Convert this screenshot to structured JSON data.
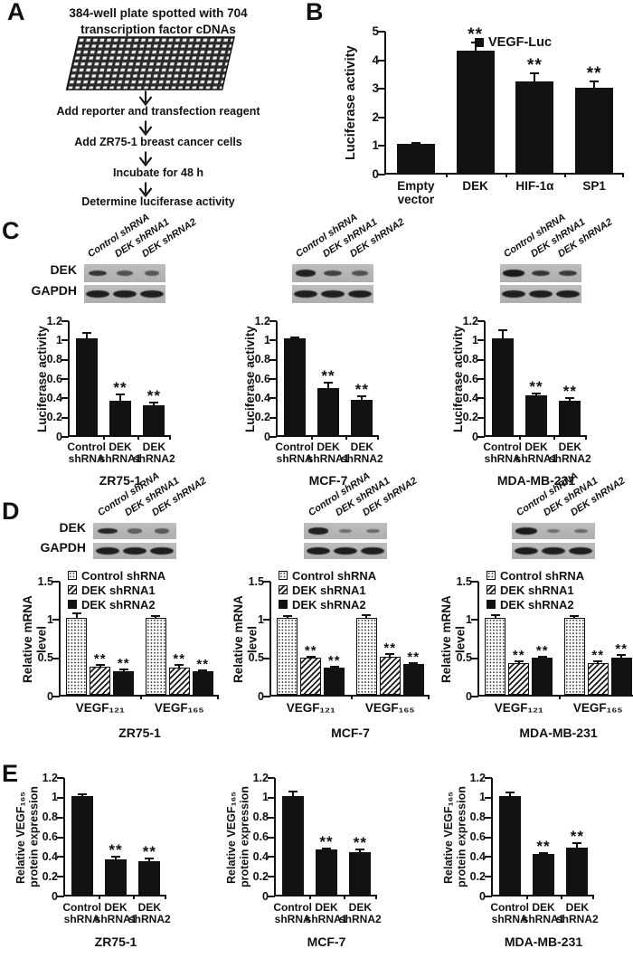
{
  "panel_labels": {
    "a": "A",
    "b": "B",
    "c": "C",
    "d": "D",
    "e": "E"
  },
  "panelA": {
    "title": "384-well plate spotted with 704\ntranscription factor cDNAs",
    "plate_graphic": "384-well plate",
    "steps": [
      "Add reporter and transfection reagent",
      "Add ZR75-1 breast cancer cells",
      "Incubate for 48 h",
      "Determine luciferase activity"
    ]
  },
  "westernBlots": {
    "lane_labels": [
      "Control shRNA",
      "DEK shRNA1",
      "DEK shRNA2"
    ],
    "row_labels": [
      "DEK",
      "GAPDH"
    ],
    "panelC": [
      {
        "cell_line": "ZR75-1",
        "DEK_bands": [
          0.7,
          0.45,
          0.4
        ],
        "GAPDH_bands": [
          0.95,
          0.95,
          0.95
        ]
      },
      {
        "cell_line": "MCF-7",
        "DEK_bands": [
          0.9,
          0.6,
          0.45
        ],
        "GAPDH_bands": [
          0.95,
          0.95,
          0.95
        ]
      },
      {
        "cell_line": "MDA-MB-231",
        "DEK_bands": [
          0.95,
          0.7,
          0.65
        ],
        "GAPDH_bands": [
          0.95,
          0.95,
          0.95
        ]
      }
    ],
    "panelD": [
      {
        "cell_line": "ZR75-1",
        "DEK_bands": [
          0.85,
          0.35,
          0.4
        ],
        "GAPDH_bands": [
          0.95,
          0.95,
          0.95
        ]
      },
      {
        "cell_line": "MCF-7",
        "DEK_bands": [
          0.9,
          0.2,
          0.25
        ],
        "GAPDH_bands": [
          0.95,
          0.95,
          0.95
        ]
      },
      {
        "cell_line": "MDA-MB-231",
        "DEK_bands": [
          0.95,
          0.2,
          0.25
        ],
        "GAPDH_bands": [
          0.95,
          0.95,
          0.95
        ]
      }
    ]
  },
  "chart_data": [
    {
      "id": "b-vegf-luc",
      "panel": "B",
      "type": "bar",
      "title": "",
      "ylabel": "Luciferase activity",
      "ylim": [
        0,
        5
      ],
      "yticks": [
        0,
        1,
        2,
        3,
        4,
        5
      ],
      "grid": false,
      "categories": [
        "Empty\nvector",
        "DEK",
        "HIF-1α",
        "SP1"
      ],
      "values": [
        1.0,
        4.27,
        3.2,
        2.97
      ],
      "errors": [
        0.05,
        0.33,
        0.3,
        0.27
      ],
      "significance": [
        "",
        "**",
        "**",
        "**"
      ],
      "bar_fill": "solid",
      "legend": [
        {
          "label": "VEGF-Luc",
          "fill": "solid"
        }
      ],
      "legend_position": "top-inside"
    },
    {
      "id": "c-zr75-1",
      "panel": "C",
      "type": "bar",
      "title": "ZR75-1",
      "ylabel": "Luciferase activity",
      "ylim": [
        0,
        1.2
      ],
      "yticks": [
        0,
        0.2,
        0.4,
        0.6,
        0.8,
        1,
        1.2
      ],
      "grid": false,
      "categories": [
        "Control\nshRNA",
        "DEK\nshRNA1",
        "DEK\nshRNA2"
      ],
      "values": [
        1.0,
        0.36,
        0.31
      ],
      "errors": [
        0.07,
        0.07,
        0.04
      ],
      "significance": [
        "",
        "**",
        "**"
      ],
      "bar_fill": "solid"
    },
    {
      "id": "c-mcf-7",
      "panel": "C",
      "type": "bar",
      "title": "MCF-7",
      "ylabel": "Luciferase activity",
      "ylim": [
        0,
        1.2
      ],
      "yticks": [
        0,
        0.2,
        0.4,
        0.6,
        0.8,
        1,
        1.2
      ],
      "grid": false,
      "categories": [
        "Control\nshRNA",
        "DEK\nshRNA1",
        "DEK\nshRNA2"
      ],
      "values": [
        1.0,
        0.49,
        0.37
      ],
      "errors": [
        0.02,
        0.06,
        0.04
      ],
      "significance": [
        "",
        "**",
        "**"
      ],
      "bar_fill": "solid"
    },
    {
      "id": "c-mda-mb-231",
      "panel": "C",
      "type": "bar",
      "title": "MDA-MB-231",
      "ylabel": "Luciferase activity",
      "ylim": [
        0,
        1.2
      ],
      "yticks": [
        0,
        0.2,
        0.4,
        0.6,
        0.8,
        1,
        1.2
      ],
      "grid": false,
      "categories": [
        "Control\nshRNA",
        "DEK\nshRNA1",
        "DEK\nshRNA2"
      ],
      "values": [
        1.0,
        0.41,
        0.36
      ],
      "errors": [
        0.1,
        0.03,
        0.03
      ],
      "significance": [
        "",
        "**",
        "**"
      ],
      "bar_fill": "solid"
    },
    {
      "id": "d-zr75-1",
      "panel": "D",
      "type": "grouped-bar",
      "title": "ZR75-1",
      "ylabel": "Relative mRNA level",
      "ylim": [
        0,
        1.5
      ],
      "yticks": [
        0,
        0.5,
        1,
        1.5
      ],
      "grid": false,
      "categories": [
        "VEGF₁₂₁",
        "VEGF₁₆₅"
      ],
      "legend_position": "top-left",
      "series": [
        {
          "name": "Control shRNA",
          "fill": "dots",
          "values": [
            1.0,
            1.0
          ],
          "errors": [
            0.07,
            0.04
          ],
          "significance": [
            "",
            ""
          ]
        },
        {
          "name": "DEK shRNA1",
          "fill": "hatch",
          "values": [
            0.37,
            0.35
          ],
          "errors": [
            0.03,
            0.05
          ],
          "significance": [
            "**",
            "**"
          ]
        },
        {
          "name": "DEK shRNA2",
          "fill": "solid",
          "values": [
            0.31,
            0.31
          ],
          "errors": [
            0.03,
            0.02
          ],
          "significance": [
            "**",
            "**"
          ]
        }
      ]
    },
    {
      "id": "d-mcf-7",
      "panel": "D",
      "type": "grouped-bar",
      "title": "MCF-7",
      "ylabel": "Relative mRNA level",
      "ylim": [
        0,
        1.5
      ],
      "yticks": [
        0,
        0.5,
        1,
        1.5
      ],
      "grid": false,
      "categories": [
        "VEGF₁₂₁",
        "VEGF₁₆₅"
      ],
      "legend_position": "top-left",
      "series": [
        {
          "name": "Control shRNA",
          "fill": "dots",
          "values": [
            1.0,
            1.0
          ],
          "errors": [
            0.04,
            0.05
          ],
          "significance": [
            "",
            ""
          ]
        },
        {
          "name": "DEK shRNA1",
          "fill": "hatch",
          "values": [
            0.49,
            0.5
          ],
          "errors": [
            0.02,
            0.04
          ],
          "significance": [
            "**",
            "**"
          ]
        },
        {
          "name": "DEK shRNA2",
          "fill": "solid",
          "values": [
            0.35,
            0.4
          ],
          "errors": [
            0.03,
            0.03
          ],
          "significance": [
            "**",
            "**"
          ]
        }
      ]
    },
    {
      "id": "d-mda-mb-231",
      "panel": "D",
      "type": "grouped-bar",
      "title": "MDA-MB-231",
      "ylabel": "Relative mRNA level",
      "ylim": [
        0,
        1.5
      ],
      "yticks": [
        0,
        0.5,
        1,
        1.5
      ],
      "grid": false,
      "categories": [
        "VEGF₁₂₁",
        "VEGF₁₆₅"
      ],
      "legend_position": "top-left",
      "series": [
        {
          "name": "Control shRNA",
          "fill": "dots",
          "values": [
            1.0,
            1.0
          ],
          "errors": [
            0.05,
            0.04
          ],
          "significance": [
            "",
            ""
          ]
        },
        {
          "name": "DEK shRNA1",
          "fill": "hatch",
          "values": [
            0.41,
            0.41
          ],
          "errors": [
            0.04,
            0.04
          ],
          "significance": [
            "**",
            "**"
          ]
        },
        {
          "name": "DEK shRNA2",
          "fill": "solid",
          "values": [
            0.49,
            0.49
          ],
          "errors": [
            0.02,
            0.04
          ],
          "significance": [
            "**",
            "**"
          ]
        }
      ]
    },
    {
      "id": "e-zr75-1",
      "panel": "E",
      "type": "bar",
      "title": "ZR75-1",
      "ylabel": "Relative VEGF₁₆₅\nprotein expression",
      "ylim": [
        0,
        1.2
      ],
      "yticks": [
        0,
        0.2,
        0.4,
        0.6,
        0.8,
        1,
        1.2
      ],
      "grid": false,
      "categories": [
        "Control\nshRNA",
        "DEK\nshRNA1",
        "DEK\nshRNA2"
      ],
      "values": [
        1.0,
        0.36,
        0.34
      ],
      "errors": [
        0.03,
        0.03,
        0.04
      ],
      "significance": [
        "",
        "**",
        "**"
      ],
      "bar_fill": "solid"
    },
    {
      "id": "e-mcf-7",
      "panel": "E",
      "type": "bar",
      "title": "MCF-7",
      "ylabel": "Relative VEGF₁₆₅\nprotein expression",
      "ylim": [
        0,
        1.2
      ],
      "yticks": [
        0,
        0.2,
        0.4,
        0.6,
        0.8,
        1,
        1.2
      ],
      "grid": false,
      "categories": [
        "Control\nshRNA",
        "DEK\nshRNA1",
        "DEK\nshRNA2"
      ],
      "values": [
        1.0,
        0.46,
        0.43
      ],
      "errors": [
        0.05,
        0.02,
        0.04
      ],
      "significance": [
        "",
        "**",
        "**"
      ],
      "bar_fill": "solid"
    },
    {
      "id": "e-mda-mb-231",
      "panel": "E",
      "type": "bar",
      "title": "MDA-MB-231",
      "ylabel": "Relative VEGF₁₆₅\nprotein expression",
      "ylim": [
        0,
        1.2
      ],
      "yticks": [
        0,
        0.2,
        0.4,
        0.6,
        0.8,
        1,
        1.2
      ],
      "grid": false,
      "categories": [
        "Control\nshRNA",
        "DEK\nshRNA1",
        "DEK\nshRNA2"
      ],
      "values": [
        1.0,
        0.41,
        0.48
      ],
      "errors": [
        0.04,
        0.02,
        0.05
      ],
      "significance": [
        "",
        "**",
        "**"
      ],
      "bar_fill": "solid"
    }
  ]
}
